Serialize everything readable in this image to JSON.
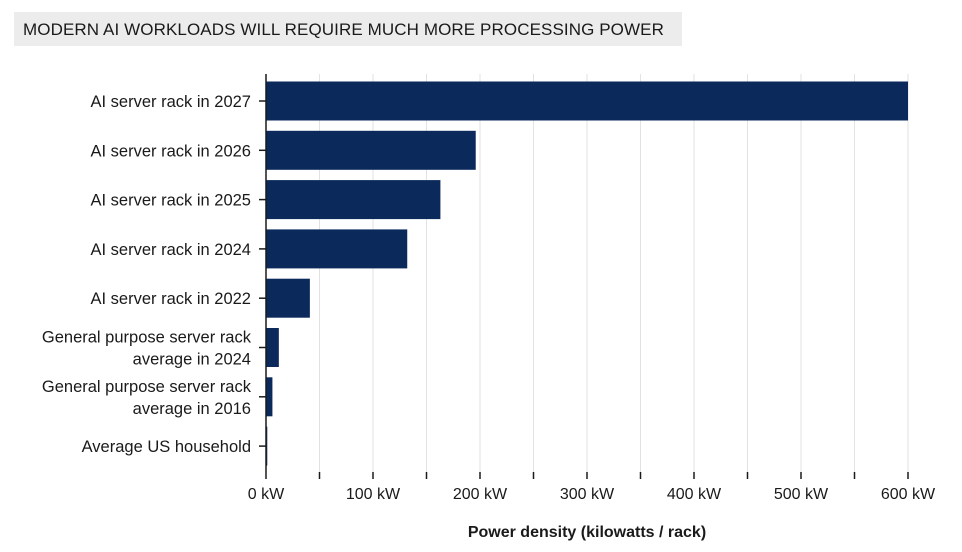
{
  "chart_data": {
    "type": "bar",
    "orientation": "horizontal",
    "title": "MODERN AI WORKLOADS WILL REQUIRE MUCH MORE PROCESSING POWER",
    "xlabel": "Power density (kilowatts / rack)",
    "ylabel": "",
    "xlim": [
      0,
      600
    ],
    "xticks": [
      0,
      100,
      200,
      300,
      400,
      500,
      600
    ],
    "xtick_labels": [
      "0 kW",
      "100 kW",
      "200 kW",
      "300 kW",
      "400 kW",
      "500 kW",
      "600 kW"
    ],
    "grid": true,
    "categories": [
      "AI server rack in 2027",
      "AI server rack in 2026",
      "AI server rack in 2025",
      "AI server rack in 2024",
      "AI server rack in 2022",
      "General purpose server rack average in 2024",
      "General purpose server rack average in 2016",
      "Average US household"
    ],
    "category_lines": [
      [
        "AI server rack in 2027"
      ],
      [
        "AI server rack in 2026"
      ],
      [
        "AI server rack in 2025"
      ],
      [
        "AI server rack in 2024"
      ],
      [
        "AI server rack in 2022"
      ],
      [
        "General purpose server rack",
        "average in 2024"
      ],
      [
        "General purpose server rack",
        "average in 2016"
      ],
      [
        "Average US household"
      ]
    ],
    "values": [
      600,
      196,
      163,
      132,
      41,
      12,
      6,
      1.2
    ],
    "bar_color": "#0b2a5b"
  }
}
